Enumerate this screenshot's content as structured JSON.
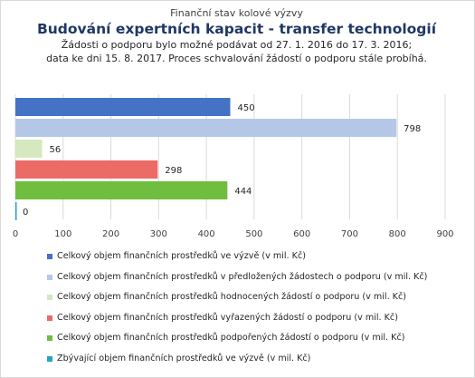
{
  "header": {
    "kicker": "Finanční stav kolové výzvy",
    "title": "Budování expertních kapacit - transfer technologií",
    "subtitle_line1": "Žádosti o podporu bylo možné  podávat od 27. 1. 2016 do 17. 3. 2016;",
    "subtitle_line2": "data ke dni 15. 8. 2017. Proces schvalování žádostí o podporu stále probíhá."
  },
  "chart_data": {
    "type": "bar",
    "orientation": "horizontal",
    "xlim": [
      0,
      900
    ],
    "ticks": [
      0,
      100,
      200,
      300,
      400,
      500,
      600,
      700,
      800,
      900
    ],
    "grid": true,
    "legend_position": "bottom",
    "series": [
      {
        "name": "Celkový objem finančních prostředků ve výzvě (v mil. Kč)",
        "value": 450,
        "color": "#4472c4"
      },
      {
        "name": "Celkový objem finančních prostředků v předložených žádostech o podporu (v mil. Kč)",
        "value": 798,
        "color": "#b4c7e7"
      },
      {
        "name": "Celkový objem finančních prostředků hodnocených žádostí o podporu (v mil. Kč)",
        "value": 56,
        "color": "#d5e8bf"
      },
      {
        "name": "Celkový objem finančních prostředků vyřazených žádostí o podporu (v mil. Kč)",
        "value": 298,
        "color": "#ec6b66"
      },
      {
        "name": "Celkový objem finančních prostředků podpořených žádostí o podporu (v mil. Kč)",
        "value": 444,
        "color": "#6fbe3f"
      },
      {
        "name": "Zbývající objem finančních prostředků ve výzvě (v mil. Kč)",
        "value": 0,
        "color": "#25a5c4"
      }
    ]
  }
}
